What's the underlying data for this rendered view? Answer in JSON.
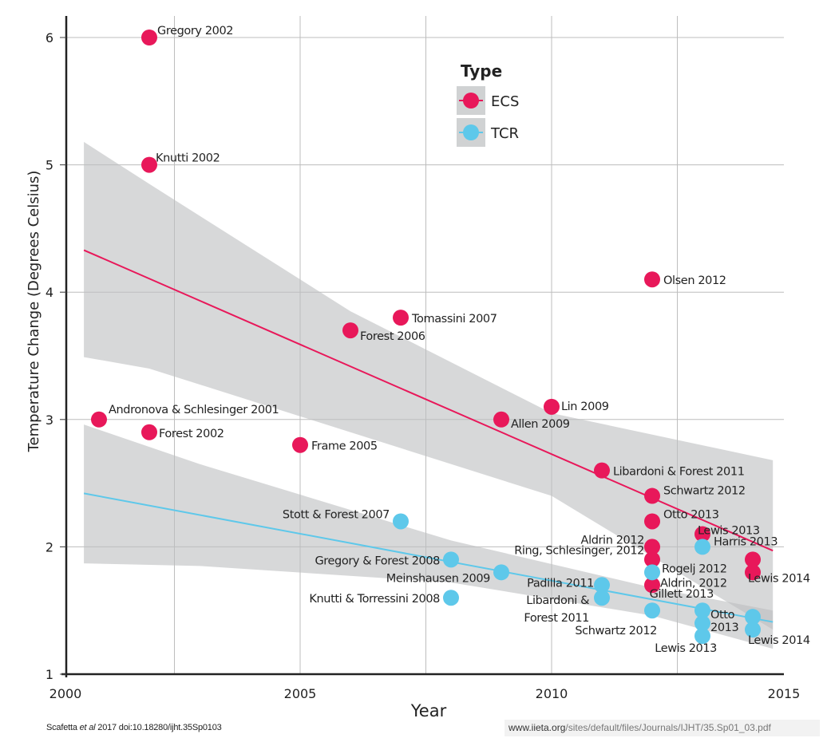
{
  "chart_data": {
    "type": "scatter",
    "title": "",
    "xlabel": "Year",
    "ylabel": "Temperature Change (Degrees Celsius)",
    "xlim": [
      2000,
      2015
    ],
    "ylim": [
      1,
      6
    ],
    "x_ticks": [
      "2000",
      "2005",
      "2010",
      "2015"
    ],
    "y_ticks": [
      "1",
      "2",
      "3",
      "4",
      "5",
      "6"
    ],
    "grid": true,
    "legend": {
      "title": "Type",
      "placement": "top-center",
      "entries": [
        {
          "name": "ECS",
          "color": "#e8185a"
        },
        {
          "name": "TCR",
          "color": "#5ec8ea"
        }
      ]
    },
    "series": [
      {
        "name": "ECS",
        "color": "#e8185a",
        "trend": {
          "x": [
            2000.7,
            2014.4
          ],
          "y": [
            4.33,
            1.97
          ]
        },
        "band": {
          "x": [
            2000.7,
            2002,
            2006,
            2010,
            2014.4
          ],
          "upper": [
            5.18,
            4.85,
            3.85,
            3.05,
            2.68
          ],
          "lower": [
            3.49,
            3.4,
            2.9,
            2.4,
            1.35
          ]
        },
        "points": [
          {
            "label": "Gregory 2002",
            "x": 2002,
            "y": 6.0
          },
          {
            "label": "Knutti 2002",
            "x": 2002,
            "y": 5.0
          },
          {
            "label": "Andronova & Schlesinger 2001",
            "x": 2001,
            "y": 3.0
          },
          {
            "label": "Forest 2002",
            "x": 2002,
            "y": 2.9
          },
          {
            "label": "Frame 2005",
            "x": 2005,
            "y": 2.8
          },
          {
            "label": "Forest 2006",
            "x": 2006,
            "y": 3.7
          },
          {
            "label": "Tomassini 2007",
            "x": 2007,
            "y": 3.8
          },
          {
            "label": "Allen 2009",
            "x": 2009,
            "y": 3.0
          },
          {
            "label": "Lin 2009",
            "x": 2010,
            "y": 3.1
          },
          {
            "label": "Olsen 2012",
            "x": 2012,
            "y": 4.1
          },
          {
            "label": "Libardoni & Forest 2011",
            "x": 2011,
            "y": 2.6
          },
          {
            "label": "Schwartz 2012",
            "x": 2012,
            "y": 2.4
          },
          {
            "label": "Otto 2013",
            "x": 2012,
            "y": 2.2
          },
          {
            "label": "Aldrin 2012",
            "x": 2012,
            "y": 2.0
          },
          {
            "label": "Ring, Schlesinger, 2012",
            "x": 2012,
            "y": 1.9
          },
          {
            "label": "Aldrin, 2012",
            "x": 2012,
            "y": 1.7
          },
          {
            "label": "Lewis 2013",
            "x": 2013,
            "y": 2.1
          },
          {
            "label": "Lewis 2014",
            "x": 2014,
            "y": 1.9
          },
          {
            "label": "",
            "x": 2014,
            "y": 1.8
          }
        ]
      },
      {
        "name": "TCR",
        "color": "#5ec8ea",
        "trend": {
          "x": [
            2000.7,
            2014.4
          ],
          "y": [
            2.42,
            1.41
          ]
        },
        "band": {
          "x": [
            2000.7,
            2003,
            2008,
            2012,
            2014.4
          ],
          "upper": [
            2.96,
            2.65,
            2.05,
            1.68,
            1.5
          ],
          "lower": [
            1.87,
            1.85,
            1.72,
            1.46,
            1.2
          ]
        },
        "points": [
          {
            "label": "Stott & Forest 2007",
            "x": 2007,
            "y": 2.2
          },
          {
            "label": "Gregory & Forest 2008",
            "x": 2008,
            "y": 1.9
          },
          {
            "label": "Meinshausen 2009",
            "x": 2009,
            "y": 1.8
          },
          {
            "label": "Knutti & Torressini 2008",
            "x": 2008,
            "y": 1.6
          },
          {
            "label": "Padilla 2011",
            "x": 2011,
            "y": 1.7
          },
          {
            "label": "Libardoni & Forest 2011",
            "x": 2011,
            "y": 1.6
          },
          {
            "label": "Schwartz 2012",
            "x": 2012,
            "y": 1.5
          },
          {
            "label": "Rogelj 2012",
            "x": 2012,
            "y": 1.8
          },
          {
            "label": "Harris 2013",
            "x": 2013,
            "y": 2.0
          },
          {
            "label": "Gillett 2013",
            "x": 2013,
            "y": 1.5
          },
          {
            "label": "Otto 2013",
            "x": 2013,
            "y": 1.4
          },
          {
            "label": "Lewis 2013",
            "x": 2013,
            "y": 1.3
          },
          {
            "label": "",
            "x": 2014,
            "y": 1.45
          },
          {
            "label": "Lewis 2014",
            "x": 2014,
            "y": 1.35
          }
        ]
      }
    ]
  },
  "footer": {
    "citation_author": "Scafetta ",
    "citation_etal": "et al",
    "citation_rest": " 2017   doi:10.18280/ijht.35Sp0103",
    "url_host": "www.iieta.org",
    "url_path": "/sites/default/files/Journals/IJHT/35.Sp01_03.pdf"
  }
}
